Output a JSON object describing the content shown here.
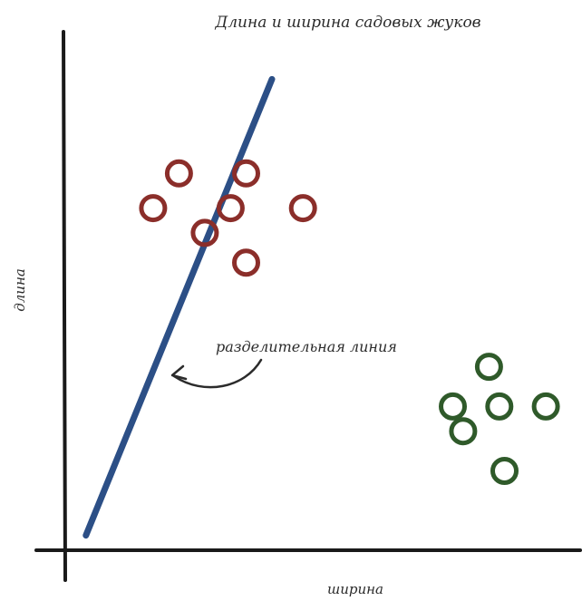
{
  "chart_data": {
    "type": "scatter",
    "title": "Длина и ширина садовых жуков",
    "xlabel": "ширина",
    "ylabel": "длина",
    "grid": false,
    "legend": "none",
    "series": [
      {
        "color": "#8b2e2a",
        "marker": "open-circle",
        "points": [
          {
            "x": 2.2,
            "y": 7.6
          },
          {
            "x": 3.5,
            "y": 7.6
          },
          {
            "x": 1.7,
            "y": 6.9
          },
          {
            "x": 3.2,
            "y": 6.9
          },
          {
            "x": 4.6,
            "y": 6.9
          },
          {
            "x": 2.7,
            "y": 6.4
          },
          {
            "x": 3.5,
            "y": 5.8
          }
        ]
      },
      {
        "color": "#2f5a2a",
        "marker": "open-circle",
        "points": [
          {
            "x": 8.2,
            "y": 3.7
          },
          {
            "x": 7.5,
            "y": 2.9
          },
          {
            "x": 8.4,
            "y": 2.9
          },
          {
            "x": 9.3,
            "y": 2.9
          },
          {
            "x": 7.7,
            "y": 2.4
          },
          {
            "x": 8.5,
            "y": 1.6
          }
        ]
      }
    ],
    "separator": {
      "color": "#2c4f86",
      "from": {
        "x": 0.4,
        "y": 0.3
      },
      "to": {
        "x": 4.0,
        "y": 9.5
      }
    },
    "annotation": {
      "text": "разделительная линия",
      "color": "#2b2b2b"
    }
  }
}
